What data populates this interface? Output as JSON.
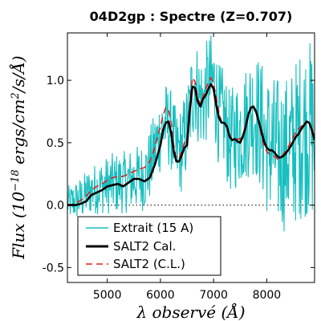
{
  "chart_data": {
    "type": "line",
    "title": "04D2gp : Spectre (Z=0.707)",
    "xlabel": "λ observé (Å)",
    "ylabel": "Flux (10^-18 ergs/cm^2/s/Å)",
    "ylabel_parts": {
      "prefix": "Flux (10",
      "exp": "−18",
      "units": " ergs/cm",
      "units_exp": "2",
      "suffix": "/s/Å)"
    },
    "xlim": [
      4250,
      8900
    ],
    "ylim": [
      -0.62,
      1.38
    ],
    "xticks": [
      5000,
      6000,
      7000,
      8000
    ],
    "yticks": [
      -0.5,
      0.0,
      0.5,
      1.0
    ],
    "xtick_labels": [
      "5000",
      "6000",
      "7000",
      "8000"
    ],
    "ytick_labels": [
      "-0.5",
      "0.0",
      "0.5",
      "1.0"
    ],
    "grid": false,
    "zero_line": true,
    "legend_position": "bottom-center",
    "colors": {
      "extrait": "#17bfbf",
      "salt2_cal": "#000000",
      "salt2_cl": "#dd2222",
      "zero_line": "#000000"
    },
    "series": [
      {
        "name": "Extrait (15 A)",
        "style": "noisy-line",
        "x": [
          4300,
          4500,
          4700,
          4900,
          5100,
          5300,
          5500,
          5700,
          5800,
          5900,
          6000,
          6100,
          6200,
          6300,
          6400,
          6500,
          6600,
          6650,
          6700,
          6800,
          6900,
          7000,
          7100,
          7200,
          7300,
          7400,
          7500,
          7600,
          7700,
          7800,
          7900,
          8000,
          8100,
          8200,
          8300,
          8400,
          8500,
          8600,
          8700,
          8800,
          8900
        ],
        "y": [
          0.02,
          0.05,
          0.12,
          0.15,
          0.17,
          0.18,
          0.21,
          0.23,
          0.32,
          0.45,
          0.58,
          0.66,
          0.6,
          0.42,
          0.45,
          0.6,
          0.9,
          1.0,
          0.88,
          0.82,
          0.95,
          0.98,
          0.72,
          0.68,
          0.5,
          0.55,
          0.6,
          0.65,
          0.75,
          0.72,
          0.62,
          0.5,
          0.45,
          0.42,
          0.4,
          0.42,
          0.47,
          0.55,
          0.6,
          0.62,
          0.55
        ],
        "noise_amplitude": [
          0.14,
          0.18,
          0.2,
          0.22,
          0.25,
          0.25,
          0.26,
          0.28,
          0.3,
          0.32,
          0.32,
          0.33,
          0.33,
          0.34,
          0.36,
          0.38,
          0.42,
          0.42,
          0.4,
          0.4,
          0.42,
          0.42,
          0.42,
          0.42,
          0.42,
          0.44,
          0.46,
          0.48,
          0.5,
          0.52,
          0.55,
          0.58,
          0.6,
          0.62,
          0.62,
          0.64,
          0.66,
          0.68,
          0.7,
          0.72,
          0.72
        ]
      },
      {
        "name": "SALT2 Cal.",
        "style": "solid",
        "x": [
          4250,
          4400,
          4500,
          4600,
          4700,
          4800,
          4900,
          5000,
          5100,
          5200,
          5300,
          5400,
          5500,
          5600,
          5700,
          5800,
          5900,
          6000,
          6050,
          6100,
          6150,
          6200,
          6250,
          6300,
          6350,
          6400,
          6450,
          6500,
          6550,
          6600,
          6650,
          6700,
          6750,
          6800,
          6850,
          6900,
          6950,
          7000,
          7050,
          7100,
          7150,
          7200,
          7250,
          7300,
          7350,
          7400,
          7450,
          7500,
          7550,
          7600,
          7650,
          7700,
          7750,
          7800,
          7850,
          7900,
          7950,
          8000,
          8050,
          8100,
          8150,
          8200,
          8250,
          8300,
          8350,
          8400,
          8450,
          8500,
          8550,
          8600,
          8650,
          8700,
          8750,
          8800,
          8850,
          8900
        ],
        "y": [
          0.0,
          0.0,
          0.01,
          0.03,
          0.08,
          0.1,
          0.12,
          0.15,
          0.16,
          0.17,
          0.15,
          0.18,
          0.21,
          0.21,
          0.19,
          0.22,
          0.33,
          0.48,
          0.6,
          0.66,
          0.67,
          0.58,
          0.43,
          0.35,
          0.35,
          0.4,
          0.46,
          0.48,
          0.75,
          0.95,
          0.94,
          0.83,
          0.79,
          0.85,
          0.88,
          0.93,
          0.97,
          0.93,
          0.8,
          0.7,
          0.66,
          0.66,
          0.63,
          0.55,
          0.52,
          0.53,
          0.51,
          0.5,
          0.55,
          0.62,
          0.72,
          0.78,
          0.79,
          0.75,
          0.67,
          0.59,
          0.51,
          0.46,
          0.44,
          0.44,
          0.42,
          0.39,
          0.38,
          0.39,
          0.41,
          0.44,
          0.47,
          0.51,
          0.55,
          0.57,
          0.61,
          0.64,
          0.67,
          0.66,
          0.6,
          0.52
        ]
      },
      {
        "name": "SALT2 (C.L.)",
        "style": "dashed",
        "x": [
          4250,
          4400,
          4500,
          4600,
          4700,
          4800,
          4900,
          5000,
          5100,
          5200,
          5300,
          5400,
          5500,
          5600,
          5700,
          5800,
          5900,
          6000,
          6050,
          6100,
          6150,
          6200,
          6250,
          6300,
          6350,
          6400,
          6450,
          6500,
          6550,
          6600,
          6650,
          6700,
          6750,
          6800,
          6850,
          6900,
          6950,
          7000,
          7050,
          7100,
          7150,
          7200,
          7250,
          7300,
          7350,
          7400,
          7450,
          7500,
          7550,
          7600,
          7650,
          7700,
          7750,
          7800,
          7850,
          7900,
          7950,
          8000,
          8050,
          8100,
          8150,
          8200,
          8250,
          8300,
          8350,
          8400,
          8450,
          8500,
          8550,
          8600,
          8650,
          8700,
          8750,
          8800,
          8850,
          8900
        ],
        "y": [
          0.0,
          0.01,
          0.04,
          0.07,
          0.12,
          0.15,
          0.17,
          0.2,
          0.22,
          0.23,
          0.23,
          0.25,
          0.27,
          0.29,
          0.3,
          0.35,
          0.47,
          0.63,
          0.72,
          0.78,
          0.77,
          0.67,
          0.48,
          0.38,
          0.37,
          0.43,
          0.5,
          0.53,
          0.8,
          1.02,
          0.99,
          0.86,
          0.81,
          0.87,
          0.93,
          0.98,
          1.02,
          0.97,
          0.86,
          0.74,
          0.67,
          0.65,
          0.64,
          0.57,
          0.52,
          0.52,
          0.53,
          0.53,
          0.56,
          0.63,
          0.71,
          0.77,
          0.78,
          0.74,
          0.66,
          0.56,
          0.47,
          0.43,
          0.41,
          0.4,
          0.39,
          0.37,
          0.38,
          0.4,
          0.43,
          0.46,
          0.51,
          0.55,
          0.59,
          0.61,
          0.63,
          0.65,
          0.67,
          0.66,
          0.6,
          0.53
        ]
      }
    ]
  }
}
